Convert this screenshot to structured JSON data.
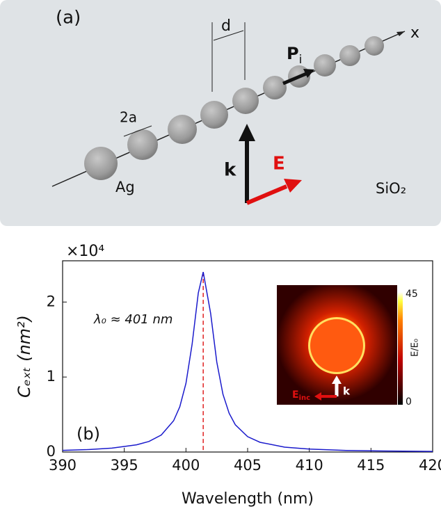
{
  "diagram": {
    "panel": "(a)",
    "spacing": "d",
    "axis": "x",
    "dipole": "P",
    "dipole_sub": "i",
    "diameter": "2a",
    "wavevector": "k",
    "field": "E",
    "particle": "Ag",
    "medium": "SiO₂"
  },
  "chart_data": {
    "type": "line",
    "panel": "(b)",
    "multiplier": "×10⁴",
    "x_label": "Wavelength  (nm)",
    "y_label": "Cₑₓₜ  (nm²)",
    "annotation": "λ₀ ≈ 401 nm",
    "x": [
      390,
      392,
      394,
      396,
      397,
      398,
      399,
      399.5,
      400,
      400.5,
      401,
      401.4,
      402,
      402.5,
      403,
      403.5,
      404,
      405,
      406,
      408,
      410,
      413,
      416,
      420
    ],
    "series": [
      {
        "name": "Cext",
        "color": "#1a1acc",
        "values": [
          0.022,
          0.032,
          0.052,
          0.096,
          0.141,
          0.227,
          0.417,
          0.603,
          0.916,
          1.438,
          2.12,
          2.4,
          1.85,
          1.2,
          0.77,
          0.517,
          0.364,
          0.205,
          0.13,
          0.065,
          0.039,
          0.021,
          0.0135,
          0.0084
        ]
      }
    ],
    "peak_line": 401.4,
    "peak_color": "#e02020",
    "xlim": [
      390,
      420
    ],
    "xticks": [
      390,
      395,
      400,
      405,
      410,
      415,
      420
    ],
    "ylim": [
      0,
      2.55
    ],
    "yticks": [
      0,
      1,
      2
    ],
    "inset": {
      "colorbar_ticks": [
        0,
        45
      ],
      "colorbar_label": "E/E₀",
      "k_label": "k",
      "e_label": "E",
      "e_sub": "inc"
    }
  }
}
